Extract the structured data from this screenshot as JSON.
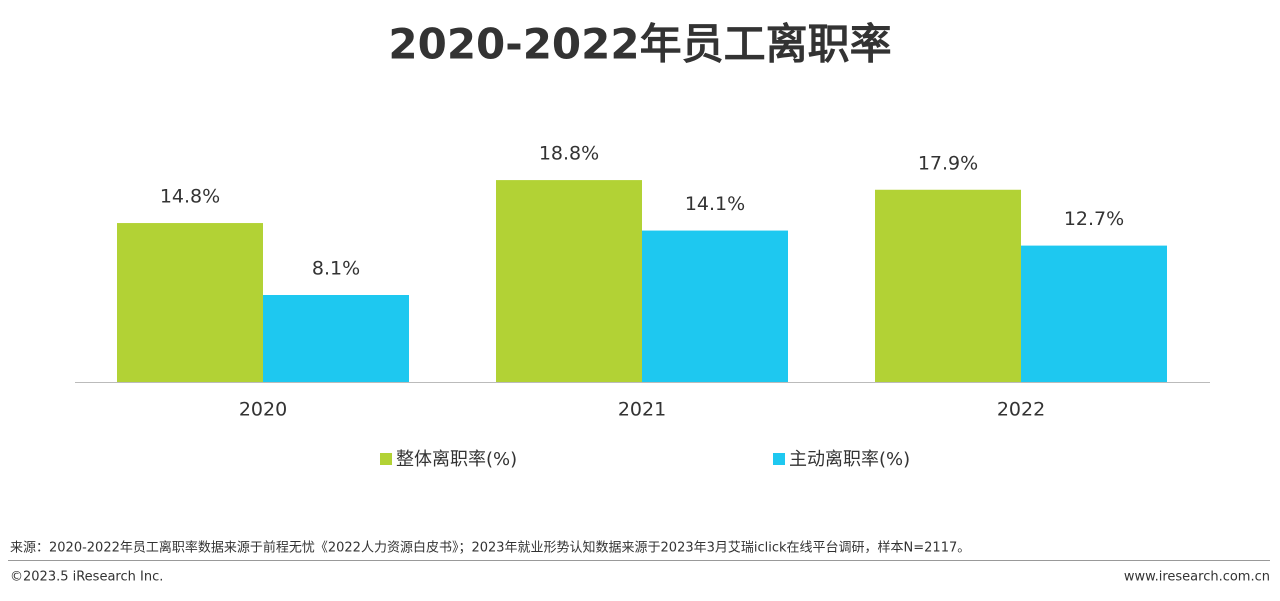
{
  "chart_data": {
    "type": "bar",
    "title": "2020-2022年员工离职率",
    "categories": [
      "2020",
      "2021",
      "2022"
    ],
    "series": [
      {
        "name": "整体离职率(%)",
        "color": "#b2d235",
        "values": [
          14.8,
          18.8,
          17.9
        ],
        "value_labels": [
          "14.8%",
          "18.8%",
          "17.9%"
        ]
      },
      {
        "name": "主动离职率(%)",
        "color": "#1ec8f0",
        "values": [
          8.1,
          14.1,
          12.7
        ],
        "value_labels": [
          "8.1%",
          "14.1%",
          "12.7%"
        ]
      }
    ]
  },
  "footer": {
    "source": "来源：2020-2022年员工离职率数据来源于前程无忧《2022人力资源白皮书》；2023年就业形势认知数据来源于2023年3月艾瑞iclick在线平台调研，样本N=2117。",
    "copyright": "©2023.5 iResearch Inc.",
    "website": "www.iresearch.com.cn"
  }
}
